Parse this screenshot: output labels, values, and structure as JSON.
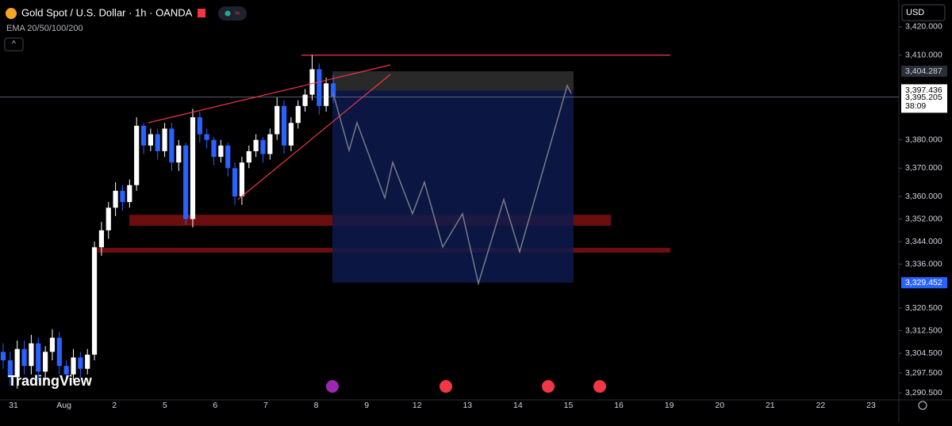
{
  "header": {
    "symbol": "Gold Spot / U.S. Dollar · 1h · OANDA",
    "indicator": "EMA 20/50/100/200",
    "currency": "USD"
  },
  "brand": "TradingView",
  "chart_data": {
    "type": "candlestick",
    "open": [
      3305,
      3302,
      3296,
      3306,
      3300,
      3308,
      3298,
      3305,
      3310,
      3300,
      3297,
      3303,
      3299,
      3304,
      3342,
      3348,
      3356,
      3362,
      3358,
      3364,
      3385,
      3378,
      3382,
      3376,
      3384,
      3372,
      3378,
      3352,
      3388,
      3382,
      3380,
      3374,
      3378,
      3370,
      3360,
      3372,
      3376,
      3380,
      3375,
      3382,
      3392,
      3378,
      3386,
      3392,
      3396,
      3405,
      3392,
      3400
    ],
    "high": [
      3308,
      3305,
      3309,
      3309,
      3311,
      3310,
      3307,
      3313,
      3312,
      3302,
      3306,
      3305,
      3306,
      3344,
      3351,
      3358,
      3365,
      3364,
      3366,
      3388,
      3386,
      3384,
      3384,
      3386,
      3386,
      3380,
      3379,
      3391,
      3390,
      3384,
      3381,
      3380,
      3379,
      3372,
      3374,
      3378,
      3382,
      3381,
      3384,
      3395,
      3394,
      3388,
      3394,
      3398,
      3410,
      3407,
      3402,
      3403
    ],
    "low": [
      3299,
      3293,
      3292,
      3297,
      3297,
      3295,
      3295,
      3302,
      3297,
      3294,
      3295,
      3296,
      3297,
      3302,
      3339,
      3345,
      3353,
      3355,
      3356,
      3362,
      3375,
      3376,
      3373,
      3374,
      3369,
      3369,
      3350,
      3349,
      3379,
      3377,
      3371,
      3372,
      3367,
      3357,
      3357,
      3370,
      3374,
      3372,
      3373,
      3380,
      3375,
      3376,
      3384,
      3390,
      3394,
      3389,
      3390,
      3393
    ],
    "close": [
      3302,
      3296,
      3306,
      3300,
      3308,
      3298,
      3305,
      3310,
      3300,
      3297,
      3303,
      3299,
      3304,
      3342,
      3348,
      3356,
      3362,
      3358,
      3364,
      3385,
      3378,
      3382,
      3376,
      3384,
      3372,
      3378,
      3352,
      3388,
      3382,
      3380,
      3374,
      3378,
      3370,
      3360,
      3372,
      3376,
      3380,
      3375,
      3382,
      3392,
      3378,
      3386,
      3392,
      3396,
      3405,
      3392,
      3400,
      3395.205
    ],
    "colors": {
      "up": "#ffffff",
      "down": "#2962ff"
    },
    "ylim": [
      3288,
      3429.5
    ],
    "yticks": [
      {
        "value": 3420,
        "label": "3,420.000"
      },
      {
        "value": 3410,
        "label": "3,410.000"
      },
      {
        "value": 3380,
        "label": "3,380.000"
      },
      {
        "value": 3370,
        "label": "3,370.000"
      },
      {
        "value": 3360,
        "label": "3,360.000"
      },
      {
        "value": 3352,
        "label": "3,352.000"
      },
      {
        "value": 3344,
        "label": "3,344.000"
      },
      {
        "value": 3336,
        "label": "3,336.000"
      },
      {
        "value": 3320.5,
        "label": "3,320.500"
      },
      {
        "value": 3312.5,
        "label": "3,312.500"
      },
      {
        "value": 3304.5,
        "label": "3,304.500"
      },
      {
        "value": 3297.5,
        "label": "3,297.500"
      },
      {
        "value": 3290.5,
        "label": "3,290.500"
      }
    ],
    "time_labels": [
      "31",
      "Aug",
      "2",
      "5",
      "6",
      "7",
      "8",
      "9",
      "12",
      "13",
      "14",
      "15",
      "16",
      "19",
      "20",
      "21",
      "22",
      "23"
    ],
    "price_badges": [
      {
        "value": 3404.287,
        "label": "3,404.287"
      },
      {
        "value": 3397.436,
        "label": "3,397.436"
      },
      {
        "value": 3395.205,
        "label": "3,395.205"
      },
      {
        "value": 3329.452,
        "label": "3,329.452"
      }
    ],
    "countdown": "38:09",
    "resistance": 3410,
    "zones": [
      [
        3349.6,
        3353.5
      ],
      [
        3340.1,
        3341.8
      ]
    ]
  }
}
